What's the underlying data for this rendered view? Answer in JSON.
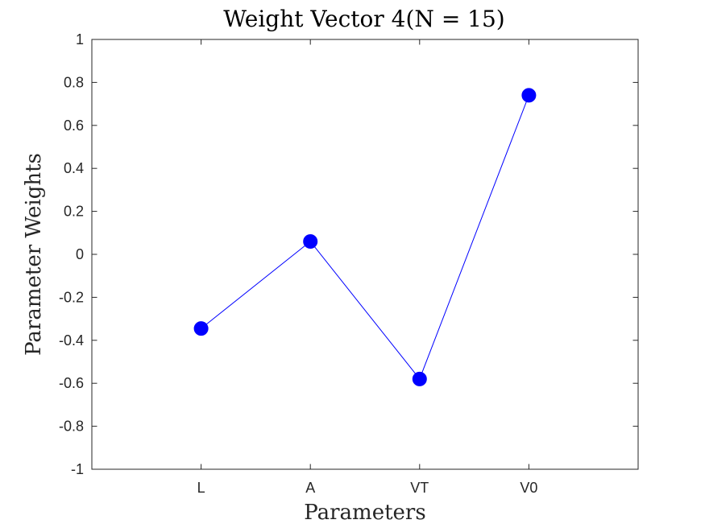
{
  "chart_data": {
    "type": "line",
    "title": "Weight Vector 4(N = 15)",
    "xlabel": "Parameters",
    "ylabel": "Parameter Weights",
    "categories": [
      "L",
      "A",
      "VT",
      "V0"
    ],
    "series": [
      {
        "values": [
          -0.345,
          0.06,
          -0.58,
          0.74
        ],
        "color": "#0000ff",
        "marker": "filled-circle"
      }
    ],
    "ylim": [
      -1,
      1
    ],
    "xlim": [
      0,
      5
    ],
    "yticks": [
      "1",
      "0.8",
      "0.6",
      "0.4",
      "0.2",
      "0",
      "-0.2",
      "-0.4",
      "-0.6",
      "-0.8",
      "-1"
    ],
    "ytick_values": [
      1,
      0.8,
      0.6,
      0.4,
      0.2,
      0,
      -0.2,
      -0.4,
      -0.6,
      -0.8,
      -1
    ],
    "grid": false,
    "legend": "none"
  }
}
